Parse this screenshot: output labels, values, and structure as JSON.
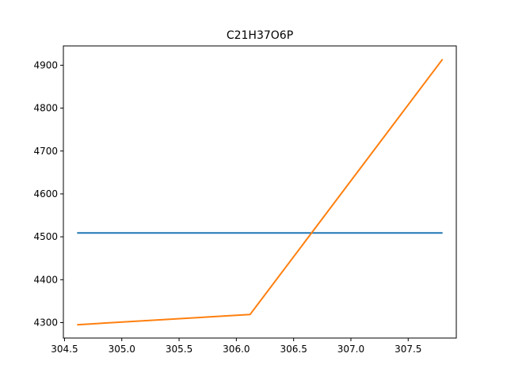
{
  "chart_data": {
    "type": "line",
    "title": "C21H37O6P",
    "xlabel": "",
    "ylabel": "",
    "xlim": [
      304.49,
      307.92
    ],
    "ylim": [
      4264,
      4945
    ],
    "x_ticks": [
      {
        "value": 304.5,
        "label": "304.5"
      },
      {
        "value": 305.0,
        "label": "305.0"
      },
      {
        "value": 305.5,
        "label": "305.5"
      },
      {
        "value": 306.0,
        "label": "306.0"
      },
      {
        "value": 306.5,
        "label": "306.5"
      },
      {
        "value": 307.0,
        "label": "307.0"
      },
      {
        "value": 307.5,
        "label": "307.5"
      }
    ],
    "y_ticks": [
      {
        "value": 4300,
        "label": "4300"
      },
      {
        "value": 4400,
        "label": "4400"
      },
      {
        "value": 4500,
        "label": "4500"
      },
      {
        "value": 4600,
        "label": "4600"
      },
      {
        "value": 4700,
        "label": "4700"
      },
      {
        "value": 4800,
        "label": "4800"
      },
      {
        "value": 4900,
        "label": "4900"
      }
    ],
    "grid": false,
    "series": [
      {
        "color": "#1f77b4",
        "points": [
          [
            304.61,
            4509
          ],
          [
            306.12,
            4509
          ],
          [
            307.8,
            4509
          ]
        ]
      },
      {
        "color": "#ff7f0e",
        "points": [
          [
            304.61,
            4295
          ],
          [
            306.12,
            4319
          ],
          [
            307.8,
            4914
          ]
        ]
      }
    ]
  }
}
